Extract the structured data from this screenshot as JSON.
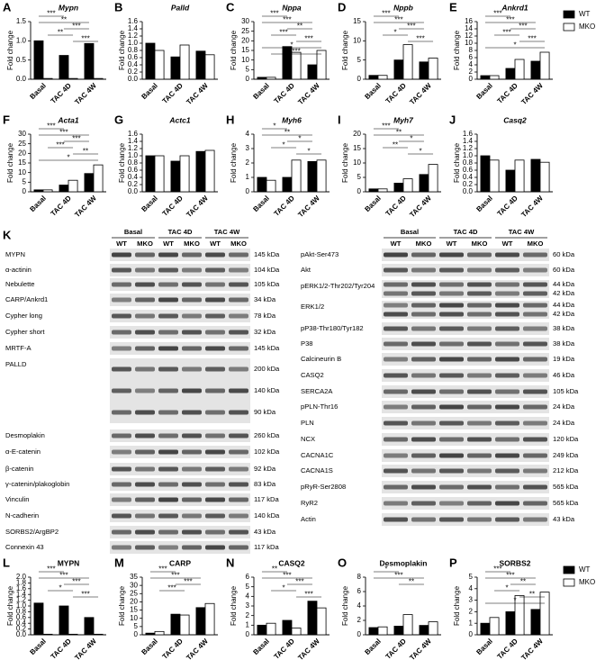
{
  "chart_data": [
    {
      "type": "bar",
      "panel": "A",
      "title": "Mypn",
      "title_style": "italic",
      "y_label": "Fold change",
      "categories": [
        "Basal",
        "TAC 4D",
        "TAC 4W"
      ],
      "series": [
        {
          "name": "WT",
          "color": "#000000",
          "values": [
            1.0,
            0.62,
            0.93
          ]
        },
        {
          "name": "MKO",
          "color": "#ffffff",
          "values": [
            0.02,
            0.02,
            0.02
          ]
        }
      ],
      "ylim": [
        0,
        1.5
      ],
      "yticks": [
        {
          "value": 0,
          "label": "0.0"
        },
        0.5,
        {
          "value": 1,
          "label": "1.0"
        },
        1.5
      ],
      "annotations": [
        "***",
        "**",
        "***",
        "**",
        "***"
      ]
    },
    {
      "type": "bar",
      "panel": "B",
      "title": "Palld",
      "title_style": "italic",
      "y_label": "Fold change",
      "categories": [
        "Basal",
        "TAC 4D",
        "TAC 4W"
      ],
      "series": [
        {
          "name": "WT",
          "color": "#000000",
          "values": [
            1.0,
            0.62,
            0.78
          ]
        },
        {
          "name": "MKO",
          "color": "#ffffff",
          "values": [
            0.8,
            0.95,
            0.68
          ]
        }
      ],
      "ylim": [
        0,
        1.6
      ],
      "yticks": [
        {
          "value": 0,
          "label": "0.0"
        },
        0.2,
        0.4,
        0.6,
        0.8,
        {
          "value": 1,
          "label": "1.0"
        },
        1.2,
        1.4,
        1.6
      ],
      "annotations": []
    },
    {
      "type": "bar",
      "panel": "C",
      "title": "Nppa",
      "title_style": "italic",
      "y_label": "Fold change",
      "categories": [
        "Basal",
        "TAC 4D",
        "TAC 4W"
      ],
      "series": [
        {
          "name": "WT",
          "color": "#000000",
          "values": [
            1,
            17,
            7.5
          ]
        },
        {
          "name": "MKO",
          "color": "#ffffff",
          "values": [
            1,
            14,
            15
          ]
        }
      ],
      "ylim": [
        0,
        30
      ],
      "yticks": [
        0,
        5,
        10,
        15,
        20,
        25,
        30
      ],
      "annotations": [
        "***",
        "***",
        "**",
        "***",
        "***",
        "*",
        "***"
      ]
    },
    {
      "type": "bar",
      "panel": "D",
      "title": "Nppb",
      "title_style": "italic",
      "y_label": "Fold change",
      "categories": [
        "Basal",
        "TAC 4D",
        "TAC 4W"
      ],
      "series": [
        {
          "name": "WT",
          "color": "#000000",
          "values": [
            1,
            5,
            4.5
          ]
        },
        {
          "name": "MKO",
          "color": "#ffffff",
          "values": [
            1,
            9,
            5.5
          ]
        }
      ],
      "ylim": [
        0,
        15
      ],
      "yticks": [
        0,
        5,
        10,
        15
      ],
      "annotations": [
        "***",
        "***",
        "***",
        "*",
        "***"
      ]
    },
    {
      "type": "bar",
      "panel": "E",
      "title": "Ankrd1",
      "title_style": "italic",
      "y_label": "Fold change",
      "categories": [
        "Basal",
        "TAC 4D",
        "TAC 4W"
      ],
      "series": [
        {
          "name": "WT",
          "color": "#000000",
          "values": [
            1,
            3,
            5
          ]
        },
        {
          "name": "MKO",
          "color": "#ffffff",
          "values": [
            1,
            5.5,
            7.5
          ]
        }
      ],
      "ylim": [
        0,
        16
      ],
      "yticks": [
        0,
        2,
        4,
        6,
        8,
        10,
        12,
        14,
        16
      ],
      "annotations": [
        "***",
        "***",
        "***",
        "***",
        "***",
        "*"
      ],
      "legend": "right"
    },
    {
      "type": "bar",
      "panel": "F",
      "title": "Acta1",
      "title_style": "italic",
      "y_label": "Fold change",
      "categories": [
        "Basal",
        "TAC 4D",
        "TAC 4W"
      ],
      "series": [
        {
          "name": "WT",
          "color": "#000000",
          "values": [
            1,
            3.5,
            9.5
          ]
        },
        {
          "name": "MKO",
          "color": "#ffffff",
          "values": [
            1,
            6,
            14
          ]
        }
      ],
      "ylim": [
        0,
        30
      ],
      "yticks": [
        0,
        5,
        10,
        15,
        20,
        25,
        30
      ],
      "annotations": [
        "***",
        "***",
        "***",
        "***",
        "**",
        "*"
      ]
    },
    {
      "type": "bar",
      "panel": "G",
      "title": "Actc1",
      "title_style": "italic",
      "y_label": "Fold change",
      "categories": [
        "Basal",
        "TAC 4D",
        "TAC 4W"
      ],
      "series": [
        {
          "name": "WT",
          "color": "#000000",
          "values": [
            1.0,
            0.85,
            1.12
          ]
        },
        {
          "name": "MKO",
          "color": "#ffffff",
          "values": [
            1.0,
            1.0,
            1.15
          ]
        }
      ],
      "ylim": [
        0,
        1.6
      ],
      "yticks": [
        {
          "value": 0,
          "label": "0.0"
        },
        0.2,
        0.4,
        0.6,
        0.8,
        {
          "value": 1,
          "label": "1.0"
        },
        1.2,
        1.4,
        1.6
      ],
      "annotations": []
    },
    {
      "type": "bar",
      "panel": "H",
      "title": "Myh6",
      "title_style": "italic",
      "y_label": "Fold change",
      "categories": [
        "Basal",
        "TAC 4D",
        "TAC 4W"
      ],
      "series": [
        {
          "name": "WT",
          "color": "#000000",
          "values": [
            1.0,
            1.0,
            2.1
          ]
        },
        {
          "name": "MKO",
          "color": "#ffffff",
          "values": [
            0.8,
            2.2,
            2.2
          ]
        }
      ],
      "ylim": [
        0,
        4
      ],
      "yticks": [
        0,
        1,
        2,
        3,
        4
      ],
      "annotations": [
        "*",
        "**",
        "*",
        "*",
        "*"
      ]
    },
    {
      "type": "bar",
      "panel": "I",
      "title": "Myh7",
      "title_style": "italic",
      "y_label": "Fold change",
      "categories": [
        "Basal",
        "TAC 4D",
        "TAC 4W"
      ],
      "series": [
        {
          "name": "WT",
          "color": "#000000",
          "values": [
            1,
            3,
            6
          ]
        },
        {
          "name": "MKO",
          "color": "#ffffff",
          "values": [
            1,
            4.5,
            9.5
          ]
        }
      ],
      "ylim": [
        0,
        20
      ],
      "yticks": [
        0,
        5,
        10,
        15,
        20
      ],
      "annotations": [
        "***",
        "**",
        "*",
        "**",
        "*"
      ]
    },
    {
      "type": "bar",
      "panel": "J",
      "title": "Casq2",
      "title_style": "italic",
      "y_label": "Fold change",
      "categories": [
        "Basal",
        "TAC 4D",
        "TAC 4W"
      ],
      "series": [
        {
          "name": "WT",
          "color": "#000000",
          "values": [
            1.0,
            0.6,
            0.9
          ]
        },
        {
          "name": "MKO",
          "color": "#ffffff",
          "values": [
            0.88,
            0.88,
            0.82
          ]
        }
      ],
      "ylim": [
        0,
        1.6
      ],
      "yticks": [
        {
          "value": 0,
          "label": "0.0"
        },
        0.2,
        0.4,
        0.6,
        0.8,
        {
          "value": 1,
          "label": "1.0"
        },
        1.2,
        1.4,
        1.6
      ],
      "annotations": []
    },
    {
      "type": "bar",
      "panel": "L",
      "title": "MYPN",
      "title_style": "normal",
      "y_label": "Fold change",
      "categories": [
        "Basal",
        "TAC 4D",
        "TAC 4W"
      ],
      "series": [
        {
          "name": "WT",
          "color": "#000000",
          "values": [
            1.1,
            1.0,
            0.6
          ]
        },
        {
          "name": "MKO",
          "color": "#ffffff",
          "values": [
            0.02,
            0.02,
            0.02
          ]
        }
      ],
      "ylim": [
        0,
        2
      ],
      "yticks": [
        {
          "value": 0,
          "label": "0.0"
        },
        0.2,
        0.4,
        0.6,
        0.8,
        {
          "value": 1,
          "label": "1.0"
        },
        1.2,
        1.4,
        1.6,
        1.8,
        {
          "value": 2,
          "label": "2.0"
        }
      ],
      "annotations": [
        "***",
        "***",
        "***",
        "*",
        "***"
      ]
    },
    {
      "type": "bar",
      "panel": "M",
      "title": "CARP",
      "title_style": "normal",
      "y_label": "Fold change",
      "categories": [
        "Basal",
        "TAC 4D",
        "TAC 4W"
      ],
      "series": [
        {
          "name": "WT",
          "color": "#000000",
          "values": [
            1,
            12.5,
            16.5
          ]
        },
        {
          "name": "MKO",
          "color": "#ffffff",
          "values": [
            2,
            12,
            19
          ]
        }
      ],
      "ylim": [
        0,
        35
      ],
      "yticks": [
        0,
        5,
        10,
        15,
        20,
        25,
        30,
        35
      ],
      "annotations": [
        "***",
        "***",
        "***",
        "***"
      ]
    },
    {
      "type": "bar",
      "panel": "N",
      "title": "CASQ2",
      "title_style": "normal",
      "y_label": "Fold change",
      "categories": [
        "Basal",
        "TAC 4D",
        "TAC 4W"
      ],
      "series": [
        {
          "name": "WT",
          "color": "#000000",
          "values": [
            1,
            1.5,
            3.5
          ]
        },
        {
          "name": "MKO",
          "color": "#ffffff",
          "values": [
            1.2,
            0.7,
            2.8
          ]
        }
      ],
      "ylim": [
        0,
        6
      ],
      "yticks": [
        0,
        1,
        2,
        3,
        4,
        5,
        6
      ],
      "annotations": [
        "**",
        "***",
        "***",
        "*",
        "***"
      ]
    },
    {
      "type": "bar",
      "panel": "O",
      "title": "Desmoplakin",
      "title_style": "normal",
      "y_label": "Fold change",
      "categories": [
        "Basal",
        "TAC 4D",
        "TAC 4W"
      ],
      "series": [
        {
          "name": "WT",
          "color": "#000000",
          "values": [
            1,
            1.2,
            1.3
          ]
        },
        {
          "name": "MKO",
          "color": "#ffffff",
          "values": [
            1.1,
            2.8,
            1.8
          ]
        }
      ],
      "ylim": [
        0,
        8
      ],
      "yticks": [
        0,
        2,
        4,
        6,
        8
      ],
      "annotations": [
        "*",
        "***",
        "**"
      ]
    },
    {
      "type": "bar",
      "panel": "P",
      "title": "SORBS2",
      "title_style": "normal",
      "y_label": "Fold change",
      "categories": [
        "Basal",
        "TAC 4D",
        "TAC 4W"
      ],
      "series": [
        {
          "name": "WT",
          "color": "#000000",
          "values": [
            1,
            2,
            2.2
          ]
        },
        {
          "name": "MKO",
          "color": "#ffffff",
          "values": [
            1.5,
            3.4,
            3.7
          ]
        }
      ],
      "ylim": [
        0,
        5
      ],
      "yticks": [
        0,
        1,
        2,
        3,
        4,
        5
      ],
      "annotations": [
        "***",
        "***",
        "**",
        "*",
        "**",
        "*"
      ],
      "legend": "right"
    }
  ],
  "blot": {
    "panel": "K",
    "left": {
      "groups": [
        {
          "name": "Basal",
          "lanes": [
            "WT",
            "MKO"
          ]
        },
        {
          "name": "TAC 4D",
          "lanes": [
            "WT",
            "MKO"
          ]
        },
        {
          "name": "TAC 4W",
          "lanes": [
            "WT",
            "MKO"
          ]
        }
      ],
      "rows": [
        {
          "label": "MYPN",
          "kda": [
            "145 kDa"
          ]
        },
        {
          "label": "α-actinin",
          "kda": [
            "104 kDa"
          ]
        },
        {
          "label": "Nebulette",
          "kda": [
            "105 kDa"
          ]
        },
        {
          "label": "CARP/Ankrd1",
          "kda": [
            "34 kDa"
          ]
        },
        {
          "label": "Cypher long",
          "kda": [
            "78 kDa"
          ]
        },
        {
          "label": "Cypher short",
          "kda": [
            "32 kDa"
          ]
        },
        {
          "label": "MRTF-A",
          "kda": [
            "145 kDa"
          ]
        },
        {
          "label": "PALLD",
          "kda": [
            "200 kDa",
            "140 kDa",
            "90 kDa"
          ]
        },
        {
          "label": "Desmoplakin",
          "kda": [
            "260 kDa"
          ]
        },
        {
          "label": "α-E-catenin",
          "kda": [
            "102 kDa"
          ]
        },
        {
          "label": "β-catenin",
          "kda": [
            "92 kDa"
          ]
        },
        {
          "label": "γ-catenin/plakoglobin",
          "kda": [
            "83 kDa"
          ]
        },
        {
          "label": "Vinculin",
          "kda": [
            "117 kDa"
          ]
        },
        {
          "label": "N-cadherin",
          "kda": [
            "140 kDa"
          ]
        },
        {
          "label": "SORBS2/ArgBP2",
          "kda": [
            "43 kDa"
          ]
        },
        {
          "label": "Connexin 43",
          "kda": [
            "117 kDa"
          ]
        }
      ]
    },
    "right": {
      "groups": [
        {
          "name": "Basal",
          "lanes": [
            "WT",
            "MKO"
          ]
        },
        {
          "name": "TAC 4D",
          "lanes": [
            "WT",
            "MKO"
          ]
        },
        {
          "name": "TAC 4W",
          "lanes": [
            "WT",
            "MKO"
          ]
        }
      ],
      "rows": [
        {
          "label": "pAkt-Ser473",
          "kda": [
            "60 kDa"
          ]
        },
        {
          "label": "Akt",
          "kda": [
            "60 kDa"
          ]
        },
        {
          "label": "pERK1/2-Thr202/Tyr204",
          "kda": [
            "44 kDa",
            "42 kDa"
          ]
        },
        {
          "label": "ERK1/2",
          "kda": [
            "44 kDa",
            "42 kDa"
          ]
        },
        {
          "label": "pP38-Thr180/Tyr182",
          "kda": [
            "38 kDa"
          ]
        },
        {
          "label": "P38",
          "kda": [
            "38 kDa"
          ]
        },
        {
          "label": "Calcineurin B",
          "kda": [
            "19 kDa"
          ]
        },
        {
          "label": "CASQ2",
          "kda": [
            "46 kDa"
          ]
        },
        {
          "label": "SERCA2A",
          "kda": [
            "105 kDa"
          ]
        },
        {
          "label": "pPLN-Thr16",
          "kda": [
            "24 kDa"
          ]
        },
        {
          "label": "PLN",
          "kda": [
            "24 kDa"
          ]
        },
        {
          "label": "NCX",
          "kda": [
            "120 kDa"
          ]
        },
        {
          "label": "CACNA1C",
          "kda": [
            "249 kDa"
          ]
        },
        {
          "label": "CACNA1S",
          "kda": [
            "212 kDa"
          ]
        },
        {
          "label": "pRyR-Ser2808",
          "kda": [
            "565 kDa"
          ]
        },
        {
          "label": "RyR2",
          "kda": [
            "565 kDa"
          ]
        },
        {
          "label": "Actin",
          "kda": [
            "43 kDa"
          ]
        }
      ]
    }
  }
}
